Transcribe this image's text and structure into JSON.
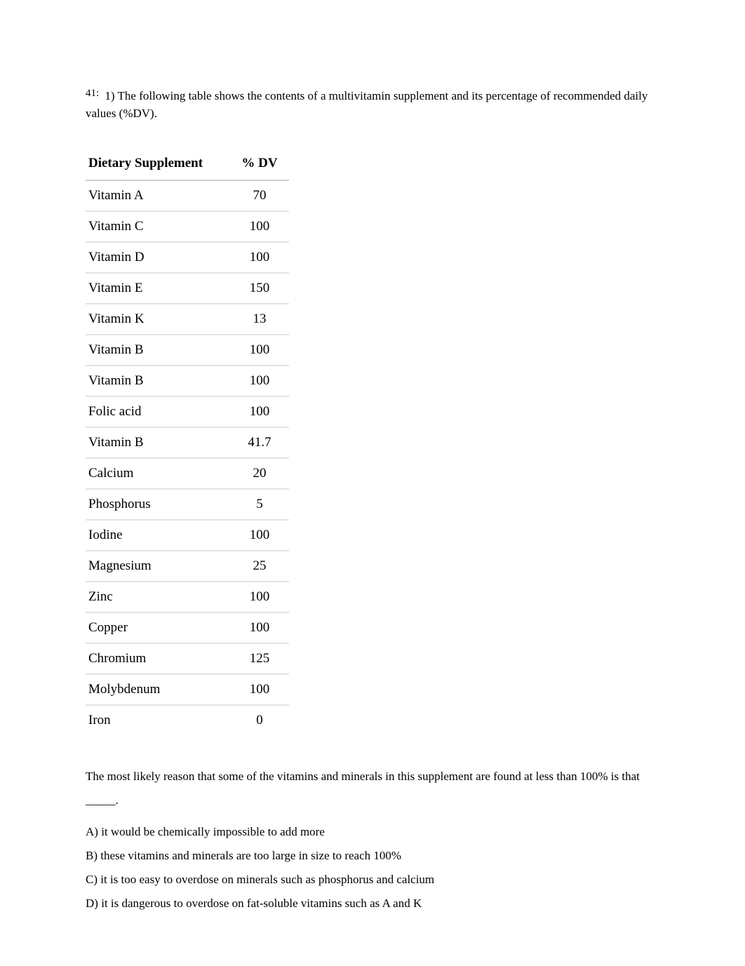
{
  "question": {
    "number_label": "41:",
    "intro": "1) The following table shows the contents of a multivitamin supplement and its percentage of recommended daily values (%DV).",
    "followup": "The most likely reason that some of the vitamins and minerals in this supplement are found at less than 100% is that _____.",
    "options": [
      "A) it would be chemically impossible to add more",
      "B) these vitamins and minerals are too large in size to reach 100%",
      "C) it is too easy to overdose on minerals such as phosphorus and calcium",
      "D) it is dangerous to overdose on fat-soluble vitamins such as A and K"
    ]
  },
  "table": {
    "header_supplement": "Dietary Supplement",
    "header_dv": "% DV",
    "rows": [
      {
        "name": "Vitamin A",
        "dv": "70"
      },
      {
        "name": "Vitamin C",
        "dv": "100"
      },
      {
        "name": "Vitamin D",
        "dv": "100"
      },
      {
        "name": "Vitamin E",
        "dv": "150"
      },
      {
        "name": "Vitamin K",
        "dv": "13"
      },
      {
        "name": "Vitamin B",
        "dv": "100"
      },
      {
        "name": "Vitamin B",
        "dv": "100"
      },
      {
        "name": "Folic acid",
        "dv": "100"
      },
      {
        "name": "Vitamin B",
        "dv": "41.7"
      },
      {
        "name": "Calcium",
        "dv": "20"
      },
      {
        "name": "Phosphorus",
        "dv": "5"
      },
      {
        "name": "Iodine",
        "dv": "100"
      },
      {
        "name": "Magnesium",
        "dv": "25"
      },
      {
        "name": "Zinc",
        "dv": "100"
      },
      {
        "name": "Copper",
        "dv": "100"
      },
      {
        "name": "Chromium",
        "dv": "125"
      },
      {
        "name": "Molybdenum",
        "dv": "100"
      },
      {
        "name": "Iron",
        "dv": "0"
      }
    ]
  },
  "colors": {
    "text": "#000000",
    "background": "#ffffff",
    "row_border": "#e3e3e3",
    "header_border": "#d0d0d0"
  }
}
